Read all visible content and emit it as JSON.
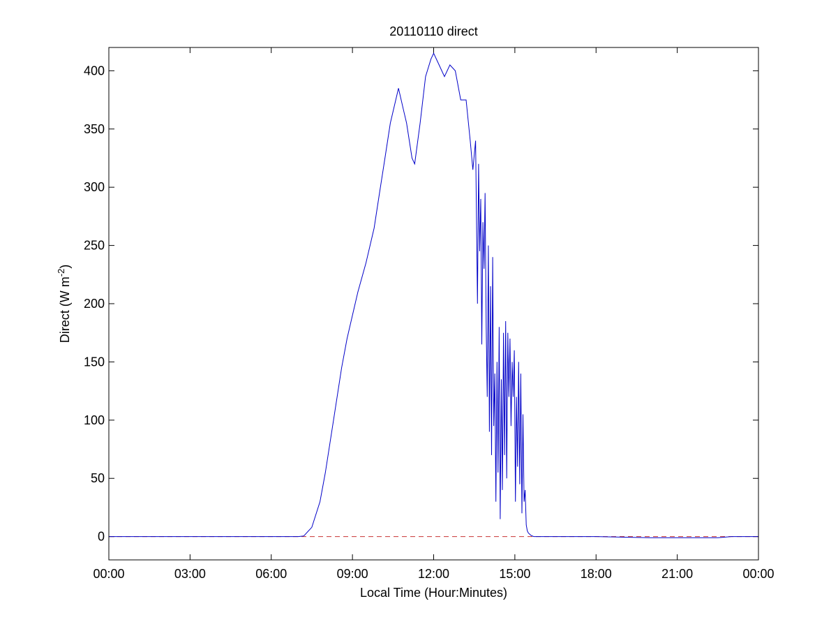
{
  "chart_data": {
    "type": "line",
    "title": "20110110 direct",
    "xlabel": "Local Time (Hour:Minutes)",
    "ylabel": {
      "base": "Direct (W m",
      "superscript": "-2",
      "suffix": ")"
    },
    "xlim": [
      0,
      24
    ],
    "ylim": [
      -20,
      420
    ],
    "xticks": [
      0,
      3,
      6,
      9,
      12,
      15,
      18,
      21,
      24
    ],
    "xtick_labels": [
      "00:00",
      "03:00",
      "06:00",
      "09:00",
      "12:00",
      "15:00",
      "18:00",
      "21:00",
      "00:00"
    ],
    "yticks": [
      0,
      50,
      100,
      150,
      200,
      250,
      300,
      350,
      400
    ],
    "ytick_labels": [
      "0",
      "50",
      "100",
      "150",
      "200",
      "250",
      "300",
      "350",
      "400"
    ],
    "grid": false,
    "colors": {
      "series": "#0000c8",
      "reference": "#c83232",
      "axes": "#000000"
    },
    "reference_line": {
      "y": 0,
      "style": "dashed"
    },
    "series": [
      {
        "x": [
          0,
          2,
          4,
          5,
          6,
          7,
          7.2,
          7.5,
          7.8,
          8.0,
          8.3,
          8.6,
          8.8,
          9.0,
          9.2,
          9.5,
          9.8,
          10.0,
          10.2,
          10.4,
          10.6,
          10.7,
          10.9,
          11.0,
          11.1,
          11.2,
          11.3,
          11.5,
          11.7,
          11.9,
          12.0,
          12.2,
          12.4,
          12.6,
          12.8,
          13.0,
          13.2,
          13.35,
          13.45,
          13.55,
          13.62,
          13.66,
          13.7,
          13.74,
          13.78,
          13.82,
          13.86,
          13.9,
          13.94,
          13.98,
          14.02,
          14.06,
          14.1,
          14.14,
          14.18,
          14.22,
          14.26,
          14.3,
          14.34,
          14.38,
          14.42,
          14.46,
          14.5,
          14.54,
          14.58,
          14.62,
          14.66,
          14.7,
          14.74,
          14.78,
          14.82,
          14.86,
          14.9,
          14.94,
          14.98,
          15.02,
          15.06,
          15.1,
          15.14,
          15.18,
          15.22,
          15.26,
          15.3,
          15.34,
          15.38,
          15.42,
          15.46,
          15.5,
          15.55,
          15.6,
          15.7,
          15.8,
          15.9,
          16,
          18,
          20,
          21,
          22,
          22.5,
          23,
          24
        ],
        "y": [
          0,
          0,
          0,
          0,
          0,
          0,
          0.5,
          8,
          30,
          55,
          100,
          145,
          170,
          190,
          210,
          235,
          265,
          295,
          325,
          355,
          375,
          385,
          365,
          355,
          340,
          325,
          320,
          355,
          395,
          410,
          415,
          405,
          395,
          405,
          400,
          375,
          375,
          340,
          315,
          340,
          200,
          320,
          245,
          290,
          165,
          270,
          230,
          295,
          180,
          120,
          250,
          90,
          215,
          70,
          240,
          95,
          140,
          30,
          150,
          55,
          180,
          15,
          135,
          40,
          175,
          70,
          185,
          50,
          175,
          120,
          170,
          95,
          150,
          120,
          160,
          30,
          120,
          60,
          150,
          45,
          140,
          20,
          105,
          30,
          40,
          10,
          5,
          3,
          2,
          1,
          0,
          0,
          0,
          0,
          0,
          -1,
          -1,
          -1,
          -1,
          0,
          0
        ]
      }
    ]
  }
}
